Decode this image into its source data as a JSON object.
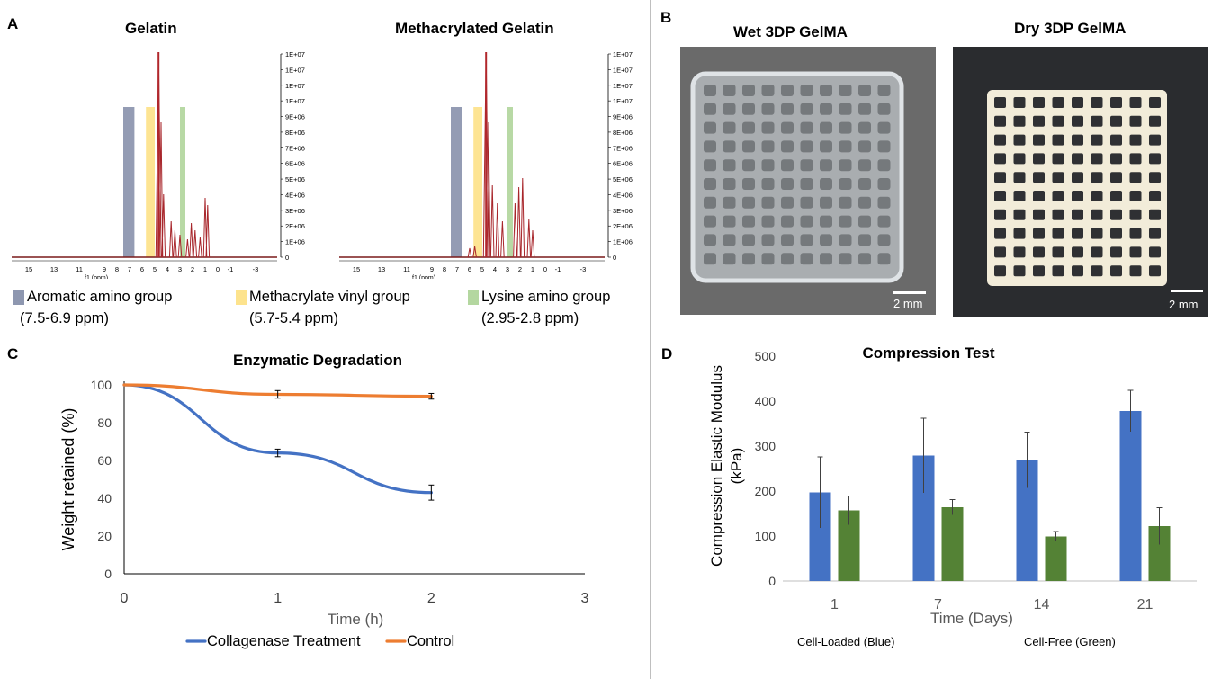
{
  "panels": {
    "a": {
      "letter": "A",
      "spectra": [
        {
          "title": "Gelatin",
          "y_ticks": [
            "1E+07",
            "1E+07",
            "1E+07",
            "1E+07",
            "9E+06",
            "8E+06",
            "7E+06",
            "6E+06",
            "5E+06",
            "4E+06",
            "3E+06",
            "2E+06",
            "1E+06",
            "0"
          ],
          "x_ticks": [
            "15",
            "13",
            "11",
            "9",
            "8",
            "7",
            "6",
            "5",
            "4",
            "3",
            "2",
            "1",
            "0",
            "-1",
            "-3"
          ],
          "x_unit": "f1 (ppm)"
        },
        {
          "title": "Methacrylated Gelatin",
          "y_ticks": [
            "1E+07",
            "1E+07",
            "1E+07",
            "1E+07",
            "9E+06",
            "8E+06",
            "7E+06",
            "6E+06",
            "5E+06",
            "4E+06",
            "3E+06",
            "2E+06",
            "1E+06",
            "0"
          ],
          "x_ticks": [
            "15",
            "13",
            "11",
            "9",
            "8",
            "7",
            "6",
            "5",
            "4",
            "3",
            "2",
            "1",
            "0",
            "-1",
            "-3"
          ],
          "x_unit": "f1 (ppm)"
        }
      ],
      "legend": [
        {
          "label": "Aromatic amino group",
          "range": "(7.5-6.9 ppm)",
          "color": "#8e97b0"
        },
        {
          "label": "Methacrylate vinyl group",
          "range": "(5.7-5.4 ppm)",
          "color": "#fde38d"
        },
        {
          "label": "Lysine amino group",
          "range": "(2.95-2.8 ppm)",
          "color": "#b4d7a0"
        }
      ]
    },
    "b": {
      "letter": "B",
      "photos": [
        {
          "title": "Wet 3DP GelMA",
          "scale": "2 mm"
        },
        {
          "title": "Dry 3DP GelMA",
          "scale": "2 mm"
        }
      ]
    },
    "c": {
      "letter": "C"
    },
    "d": {
      "letter": "D"
    }
  },
  "chart_data": [
    {
      "type": "line",
      "title": "Enzymatic Degradation",
      "xlabel": "Time (h)",
      "ylabel": "Weight retained (%)",
      "xlim": [
        0,
        3
      ],
      "ylim": [
        0,
        100
      ],
      "x_ticks": [
        "0",
        "1",
        "2",
        "3"
      ],
      "y_ticks": [
        "0",
        "20",
        "40",
        "60",
        "80",
        "100"
      ],
      "grid": false,
      "legend_position": "bottom",
      "x": [
        0,
        1,
        2
      ],
      "series": [
        {
          "name": "Collagenase Treatment",
          "color": "#4472c4",
          "values": [
            100,
            64,
            43
          ],
          "errors": [
            0,
            2,
            4
          ]
        },
        {
          "name": "Control",
          "color": "#ed7d31",
          "values": [
            100,
            95,
            94
          ],
          "errors": [
            0,
            2,
            1.5
          ]
        }
      ]
    },
    {
      "type": "bar",
      "title": "Compression Test",
      "xlabel": "Time (Days)",
      "ylabel": "Compression Elastic Modulus (kPa)",
      "ylim": [
        0,
        500
      ],
      "y_ticks": [
        "0",
        "100",
        "200",
        "300",
        "400",
        "500"
      ],
      "categories": [
        "1",
        "7",
        "14",
        "21"
      ],
      "grid": false,
      "series": [
        {
          "color": "#4472c4",
          "values": [
            197,
            279,
            269,
            378
          ],
          "errors": [
            79,
            83,
            62,
            46
          ]
        },
        {
          "color": "#548235",
          "values": [
            157,
            164,
            99,
            122
          ],
          "errors": [
            32,
            17,
            11,
            41
          ]
        }
      ],
      "notes": [
        "Cell-Loaded (Blue)",
        "Cell-Free (Green)"
      ]
    }
  ]
}
